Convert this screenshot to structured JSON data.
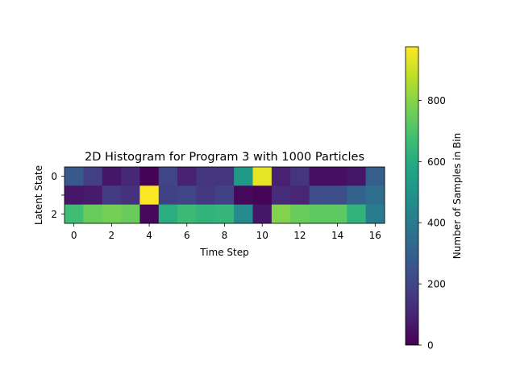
{
  "chart_data": {
    "type": "heatmap",
    "title": "2D Histogram for Program 3 with 1000 Particles",
    "xlabel": "Time Step",
    "ylabel": "Latent State",
    "x_ticks": [
      0,
      2,
      4,
      6,
      8,
      10,
      12,
      14,
      16
    ],
    "y_ticks": [
      0,
      1,
      2
    ],
    "y_tick_labels": [
      "0",
      "",
      "2"
    ],
    "colormap": "viridis",
    "colorbar": {
      "label": "Number of Samples in Bin",
      "range": [
        0,
        975
      ],
      "ticks": [
        0,
        200,
        400,
        600,
        800
      ]
    },
    "rows": [
      {
        "state": 0,
        "values": [
          270,
          180,
          60,
          110,
          5,
          200,
          90,
          150,
          150,
          520,
          940,
          90,
          150,
          40,
          40,
          60,
          290
        ]
      },
      {
        "state": 1,
        "values": [
          60,
          70,
          170,
          140,
          975,
          190,
          200,
          160,
          190,
          20,
          10,
          120,
          100,
          230,
          230,
          310,
          350
        ]
      },
      {
        "state": 2,
        "values": [
          670,
          750,
          770,
          750,
          20,
          610,
          660,
          630,
          640,
          460,
          60,
          790,
          750,
          730,
          730,
          630,
          400
        ]
      }
    ]
  }
}
